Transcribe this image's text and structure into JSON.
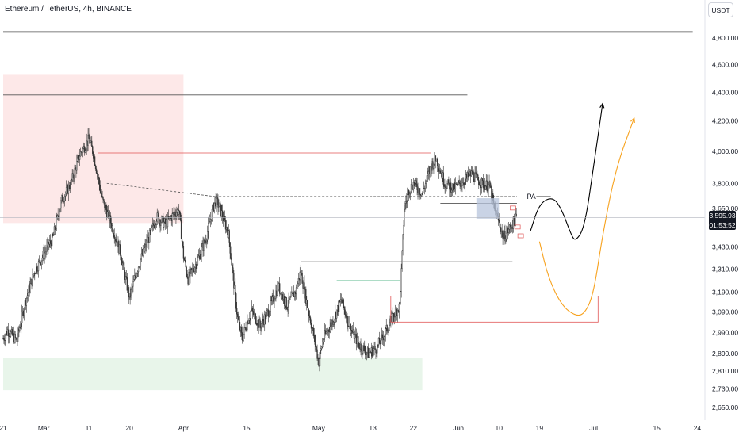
{
  "header": {
    "title": "Ethereum / TetherUS, 4h, BINANCE",
    "currency_button": "USDT"
  },
  "price_tag": {
    "price": "3,595.93",
    "countdown": "01:53:52"
  },
  "annotation": {
    "pa_label": "PA"
  },
  "colors": {
    "candles": "#333333",
    "supply_zone": "#fde8e8",
    "demand_zone": "#e8f5ea",
    "projection_black": "#000000",
    "projection_orange": "#f7a21e",
    "red_box": "#e05555",
    "blue_box": "#b7c4dc",
    "green_line": "#5bb98c"
  },
  "chart_data": {
    "type": "candlestick",
    "title": "Ethereum / TetherUS, 4h, BINANCE",
    "y_scale": "log",
    "ylim": [
      2620,
      4900
    ],
    "y_ticks": [
      {
        "value": 4800,
        "label": "4,800.00"
      },
      {
        "value": 4600,
        "label": "4,600.00"
      },
      {
        "value": 4400,
        "label": "4,400.00"
      },
      {
        "value": 4200,
        "label": "4,200.00"
      },
      {
        "value": 4000,
        "label": "4,000.00"
      },
      {
        "value": 3800,
        "label": "3,800.00"
      },
      {
        "value": 3650,
        "label": "3,650.00"
      },
      {
        "value": 3430,
        "label": "3,430.00"
      },
      {
        "value": 3310,
        "label": "3,310.00"
      },
      {
        "value": 3190,
        "label": "3,190.00"
      },
      {
        "value": 3090,
        "label": "3,090.00"
      },
      {
        "value": 2990,
        "label": "2,990.00"
      },
      {
        "value": 2890,
        "label": "2,890.00"
      },
      {
        "value": 2810,
        "label": "2,810.00"
      },
      {
        "value": 2730,
        "label": "2,730.00"
      },
      {
        "value": 2650,
        "label": "2,650.00"
      }
    ],
    "x_ticks": [
      {
        "label": "21",
        "day": 0
      },
      {
        "label": "Mar",
        "day": 9
      },
      {
        "label": "11",
        "day": 19
      },
      {
        "label": "20",
        "day": 28
      },
      {
        "label": "Apr",
        "day": 40
      },
      {
        "label": "15",
        "day": 54
      },
      {
        "label": "May",
        "day": 70
      },
      {
        "label": "13",
        "day": 82
      },
      {
        "label": "22",
        "day": 91
      },
      {
        "label": "Jun",
        "day": 101
      },
      {
        "label": "10",
        "day": 110
      },
      {
        "label": "19",
        "day": 119
      },
      {
        "label": "Jul",
        "day": 131
      },
      {
        "label": "15",
        "day": 145
      },
      {
        "label": "24",
        "day": 154
      }
    ],
    "candle_anchors": [
      [
        0,
        2960
      ],
      [
        1,
        3000
      ],
      [
        3,
        2950
      ],
      [
        5,
        3150
      ],
      [
        7,
        3300
      ],
      [
        9,
        3390
      ],
      [
        11,
        3480
      ],
      [
        13,
        3700
      ],
      [
        15,
        3800
      ],
      [
        17,
        3980
      ],
      [
        19,
        4080
      ],
      [
        20,
        3990
      ],
      [
        22,
        3700
      ],
      [
        24,
        3560
      ],
      [
        26,
        3400
      ],
      [
        28,
        3160
      ],
      [
        30,
        3330
      ],
      [
        32,
        3460
      ],
      [
        34,
        3600
      ],
      [
        36,
        3560
      ],
      [
        38,
        3620
      ],
      [
        39,
        3640
      ],
      [
        40,
        3380
      ],
      [
        41,
        3260
      ],
      [
        43,
        3350
      ],
      [
        45,
        3480
      ],
      [
        47,
        3700
      ],
      [
        48,
        3660
      ],
      [
        50,
        3500
      ],
      [
        52,
        3060
      ],
      [
        53,
        2960
      ],
      [
        55,
        3100
      ],
      [
        57,
        3020
      ],
      [
        59,
        3100
      ],
      [
        61,
        3220
      ],
      [
        63,
        3120
      ],
      [
        65,
        3200
      ],
      [
        66,
        3300
      ],
      [
        67,
        3180
      ],
      [
        69,
        2960
      ],
      [
        70,
        2850
      ],
      [
        71,
        2960
      ],
      [
        73,
        3040
      ],
      [
        75,
        3150
      ],
      [
        77,
        3010
      ],
      [
        79,
        2930
      ],
      [
        81,
        2890
      ],
      [
        83,
        2920
      ],
      [
        85,
        3000
      ],
      [
        87,
        3090
      ],
      [
        88,
        3120
      ],
      [
        89,
        3650
      ],
      [
        90,
        3760
      ],
      [
        91,
        3800
      ],
      [
        93,
        3740
      ],
      [
        95,
        3910
      ],
      [
        96,
        3960
      ],
      [
        98,
        3800
      ],
      [
        100,
        3770
      ],
      [
        102,
        3810
      ],
      [
        104,
        3860
      ],
      [
        106,
        3800
      ],
      [
        108,
        3780
      ],
      [
        109,
        3640
      ],
      [
        110,
        3570
      ],
      [
        111,
        3480
      ],
      [
        112,
        3520
      ],
      [
        113,
        3560
      ],
      [
        114,
        3600
      ]
    ],
    "zones": [
      {
        "kind": "supply",
        "day_from": 0,
        "day_to": 40,
        "price_from": 3565,
        "price_to": 4530
      },
      {
        "kind": "demand",
        "day_from": 0,
        "day_to": 93,
        "price_from": 2725,
        "price_to": 2870
      }
    ],
    "levels": [
      {
        "price": 4850,
        "day_from": 0,
        "day_to": 153,
        "style": "solid",
        "color": "#555555"
      },
      {
        "price": 4380,
        "day_from": 0,
        "day_to": 103,
        "style": "solid",
        "color": "#555555"
      },
      {
        "price": 4100,
        "day_from": 19,
        "day_to": 109,
        "style": "solid",
        "color": "#555555"
      },
      {
        "price": 3990,
        "day_from": 21,
        "day_to": 95,
        "style": "solid",
        "color": "#e05555"
      },
      {
        "price": 3720,
        "day_from": 47,
        "day_to": 114,
        "style": "dashed",
        "color": "#555555"
      },
      {
        "price": 3350,
        "day_from": 66,
        "day_to": 113,
        "style": "solid",
        "color": "#555555"
      },
      {
        "price": 3250,
        "day_from": 74,
        "day_to": 88,
        "style": "solid",
        "color": "#5bb98c"
      },
      {
        "price": 3680,
        "day_from": 97,
        "day_to": 114,
        "style": "solid",
        "color": "#555555"
      },
      {
        "price": 3430,
        "day_from": 110,
        "day_to": 117,
        "style": "dotted",
        "color": "#555555"
      }
    ],
    "trendline_dashed": {
      "from": {
        "day": 23,
        "price": 3800
      },
      "to": {
        "day": 47,
        "price": 3720
      }
    },
    "boxes": [
      {
        "kind": "red",
        "day_from": 86,
        "day_to": 132,
        "price_from": 3040,
        "price_to": 3170
      },
      {
        "kind": "blue",
        "day_from": 105,
        "day_to": 110,
        "price_from": 3590,
        "price_to": 3710
      }
    ],
    "projections": {
      "black": [
        [
          117,
          3520
        ],
        [
          119,
          3680
        ],
        [
          122,
          3720
        ],
        [
          124,
          3640
        ],
        [
          126,
          3500
        ],
        [
          127,
          3460
        ],
        [
          129,
          3540
        ],
        [
          131,
          3900
        ],
        [
          133,
          4320
        ]
      ],
      "orange": [
        [
          119,
          3460
        ],
        [
          121,
          3260
        ],
        [
          124,
          3120
        ],
        [
          127,
          3070
        ],
        [
          129,
          3080
        ],
        [
          131,
          3180
        ],
        [
          133,
          3500
        ],
        [
          136,
          3900
        ],
        [
          140,
          4220
        ]
      ]
    },
    "last_price": 3595.93
  }
}
